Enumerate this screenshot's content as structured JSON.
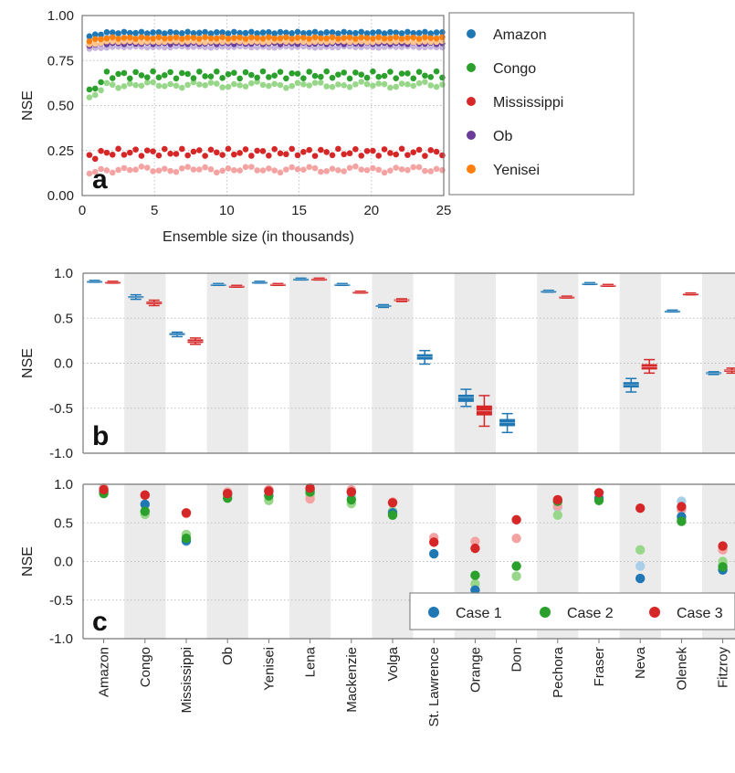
{
  "colors": {
    "amazon": "#1f77b4",
    "congo": "#2ca02c",
    "mississippi": "#d62728",
    "ob": "#6a3d9a",
    "yenisei": "#ff7f0e",
    "case1": "#1f77b4",
    "case2": "#2ca02c",
    "case3": "#d62728",
    "light_blue": "#a9cfe8",
    "light_green": "#98d68a",
    "light_red": "#f4a3a3",
    "light_purple": "#c6b4dc",
    "light_orange": "#ffc58f",
    "band": "#ebebeb",
    "grid": "#bdbdbd"
  },
  "chart_data": [
    {
      "panel": "a",
      "type": "scatter",
      "xlabel": "Ensemble size (in thousands)",
      "ylabel": "NSE",
      "xlim": [
        0,
        25
      ],
      "ylim": [
        0,
        1
      ],
      "xticks": [
        "0",
        "5",
        "10",
        "15",
        "20",
        "25"
      ],
      "yticks": [
        "0.00",
        "0.25",
        "0.50",
        "0.75",
        "1.00"
      ],
      "grid": true,
      "legend_position": "outside-right",
      "series": [
        {
          "name": "Amazon",
          "mean_dark": 0.905,
          "mean_light": 0.885,
          "start_dark": 0.885,
          "start_light": 0.87,
          "amp": 0.004
        },
        {
          "name": "Congo",
          "mean_dark": 0.67,
          "mean_light": 0.615,
          "start_dark": 0.57,
          "start_light": 0.53,
          "amp": 0.018
        },
        {
          "name": "Mississippi",
          "mean_dark": 0.24,
          "mean_light": 0.145,
          "start_dark": 0.215,
          "start_light": 0.125,
          "amp": 0.018
        },
        {
          "name": "Ob",
          "mean_dark": 0.845,
          "mean_light": 0.825,
          "start_dark": 0.835,
          "start_light": 0.815,
          "amp": 0.004
        },
        {
          "name": "Yenisei",
          "mean_dark": 0.875,
          "mean_light": 0.855,
          "start_dark": 0.86,
          "start_light": 0.84,
          "amp": 0.004
        }
      ]
    },
    {
      "panel": "b",
      "type": "box",
      "ylabel": "NSE",
      "ylim": [
        -1.0,
        1.0
      ],
      "yticks": [
        "1.0",
        "0.5",
        "0.0",
        "-0.5",
        "-1.0"
      ],
      "grid": true,
      "categories": [
        "Amazon",
        "Congo",
        "Mississippi",
        "Ob",
        "Yenisei",
        "Lena",
        "Mackenzie",
        "Volga",
        "St. Lawrence",
        "Orange",
        "Don",
        "Pechora",
        "Fraser",
        "Neva",
        "Olenek",
        "Fitzroy"
      ],
      "series": [
        {
          "name": "Case 1",
          "boxes": [
            [
              0.92,
              0.915,
              0.91,
              0.905,
              0.9
            ],
            [
              0.76,
              0.745,
              0.735,
              0.725,
              0.71
            ],
            [
              0.345,
              0.335,
              0.32,
              0.31,
              0.295
            ],
            [
              0.885,
              0.88,
              0.875,
              0.87,
              0.865
            ],
            [
              0.91,
              0.905,
              0.9,
              0.895,
              0.89
            ],
            [
              0.945,
              0.94,
              0.935,
              0.93,
              0.925
            ],
            [
              0.885,
              0.88,
              0.875,
              0.87,
              0.865
            ],
            [
              0.65,
              0.645,
              0.635,
              0.625,
              0.62
            ],
            [
              0.14,
              0.1,
              0.07,
              0.04,
              -0.01
            ],
            [
              -0.29,
              -0.35,
              -0.38,
              -0.43,
              -0.48
            ],
            [
              -0.56,
              -0.62,
              -0.66,
              -0.7,
              -0.77
            ],
            [
              0.81,
              0.805,
              0.8,
              0.795,
              0.79
            ],
            [
              0.895,
              0.89,
              0.885,
              0.88,
              0.875
            ],
            [
              -0.17,
              -0.21,
              -0.24,
              -0.27,
              -0.32
            ],
            [
              0.59,
              0.585,
              0.58,
              0.575,
              0.57
            ],
            [
              -0.095,
              -0.1,
              -0.11,
              -0.12,
              -0.125
            ]
          ]
        },
        {
          "name": "Case 3",
          "boxes": [
            [
              0.91,
              0.905,
              0.9,
              0.895,
              0.89
            ],
            [
              0.7,
              0.685,
              0.67,
              0.655,
              0.64
            ],
            [
              0.28,
              0.265,
              0.245,
              0.225,
              0.21
            ],
            [
              0.865,
              0.86,
              0.855,
              0.85,
              0.845
            ],
            [
              0.885,
              0.88,
              0.875,
              0.87,
              0.865
            ],
            [
              0.945,
              0.94,
              0.935,
              0.93,
              0.925
            ],
            [
              0.8,
              0.795,
              0.79,
              0.785,
              0.78
            ],
            [
              0.715,
              0.71,
              0.7,
              0.69,
              0.685
            ],
            null,
            [
              -0.36,
              -0.47,
              -0.53,
              -0.58,
              -0.7
            ],
            null,
            [
              0.745,
              0.74,
              0.735,
              0.73,
              0.725
            ],
            [
              0.875,
              0.87,
              0.865,
              0.86,
              0.855
            ],
            [
              0.04,
              -0.01,
              -0.04,
              -0.07,
              -0.11
            ],
            [
              0.78,
              0.775,
              0.77,
              0.765,
              0.76
            ],
            [
              -0.055,
              -0.07,
              -0.08,
              -0.095,
              -0.11
            ]
          ]
        }
      ]
    },
    {
      "panel": "c",
      "type": "scatter",
      "ylabel": "NSE",
      "ylim": [
        -1.0,
        1.0
      ],
      "yticks": [
        "1.0",
        "0.5",
        "0.0",
        "-0.5",
        "-1.0"
      ],
      "grid": true,
      "legend_position": "lower-right",
      "categories": [
        "Amazon",
        "Congo",
        "Mississippi",
        "Ob",
        "Yenisei",
        "Lena",
        "Mackenzie",
        "Volga",
        "St. Lawrence",
        "Orange",
        "Don",
        "Pechora",
        "Fraser",
        "Neva",
        "Olenek",
        "Fitzroy"
      ],
      "series": [
        {
          "name": "Case 1",
          "values": [
            0.91,
            0.74,
            0.27,
            0.88,
            0.91,
            0.93,
            0.9,
            0.63,
            0.1,
            -0.37,
            null,
            0.78,
            0.82,
            -0.22,
            0.58,
            -0.11
          ]
        },
        {
          "name": "Case 1 (light)",
          "values": [
            0.89,
            0.65,
            0.26,
            0.85,
            0.86,
            0.88,
            0.85,
            0.6,
            null,
            -0.46,
            null,
            0.7,
            null,
            -0.06,
            0.78,
            -0.04
          ]
        },
        {
          "name": "Case 2",
          "values": [
            0.88,
            0.65,
            0.3,
            0.82,
            0.85,
            0.9,
            0.8,
            0.6,
            null,
            -0.18,
            -0.06,
            0.78,
            0.79,
            null,
            0.52,
            -0.07
          ]
        },
        {
          "name": "Case 2 (light)",
          "values": [
            0.9,
            0.61,
            0.35,
            0.86,
            0.79,
            0.86,
            0.75,
            0.65,
            null,
            -0.29,
            -0.19,
            0.6,
            null,
            0.15,
            0.55,
            0.0
          ]
        },
        {
          "name": "Case 3",
          "values": [
            0.93,
            0.86,
            0.63,
            0.88,
            0.91,
            0.95,
            0.9,
            0.76,
            0.25,
            0.17,
            0.54,
            0.8,
            0.89,
            0.69,
            0.71,
            0.2
          ]
        },
        {
          "name": "Case 3 (light)",
          "values": [
            0.95,
            0.86,
            0.62,
            0.9,
            0.93,
            0.81,
            0.93,
            0.77,
            0.31,
            0.26,
            0.3,
            0.72,
            null,
            null,
            0.67,
            0.15
          ]
        }
      ]
    }
  ]
}
